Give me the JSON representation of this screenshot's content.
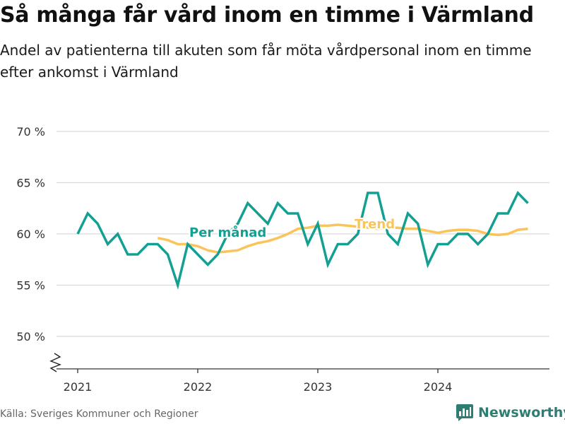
{
  "header": {
    "title": "Så många får vård inom en timme i Värmland",
    "subtitle": "Andel av patienterna till akuten som får möta vårdpersonal inom en timme efter ankomst i Värmland"
  },
  "footer": {
    "source": "Källa: Sveriges Kommuner och Regioner",
    "brand": "Newsworthy"
  },
  "colors": {
    "monthly": "#13a093",
    "trend": "#f9c55b",
    "grid": "#d9d9d9",
    "axis": "#333333",
    "brand": "#2e7d73"
  },
  "chart_data": {
    "type": "line",
    "title": "",
    "xlabel": "",
    "ylabel": "",
    "ylim": [
      50,
      70
    ],
    "y_ticks": [
      50,
      55,
      60,
      65,
      70
    ],
    "y_tick_labels": [
      "50 %",
      "55 %",
      "60 %",
      "65 %",
      "70 %"
    ],
    "x_ticks": [
      "2021-01",
      "2022-01",
      "2023-01",
      "2024-01"
    ],
    "x_tick_labels": [
      "2021",
      "2022",
      "2023",
      "2024"
    ],
    "y_axis_break": true,
    "grid": "horizontal",
    "series": [
      {
        "name": "Per månad",
        "x": [
          "2021-01",
          "2021-02",
          "2021-03",
          "2021-04",
          "2021-05",
          "2021-06",
          "2021-07",
          "2021-08",
          "2021-09",
          "2021-10",
          "2021-11",
          "2021-12",
          "2022-01",
          "2022-02",
          "2022-03",
          "2022-04",
          "2022-05",
          "2022-06",
          "2022-07",
          "2022-08",
          "2022-09",
          "2022-10",
          "2022-11",
          "2022-12",
          "2023-01",
          "2023-02",
          "2023-03",
          "2023-04",
          "2023-05",
          "2023-06",
          "2023-07",
          "2023-08",
          "2023-09",
          "2023-10",
          "2023-11",
          "2023-12",
          "2024-01",
          "2024-02",
          "2024-03",
          "2024-04",
          "2024-05",
          "2024-06",
          "2024-07",
          "2024-08",
          "2024-09",
          "2024-10"
        ],
        "values": [
          60,
          62,
          61,
          59,
          60,
          58,
          58,
          59,
          59,
          58,
          55,
          59,
          58,
          57,
          58,
          60,
          61,
          63,
          62,
          61,
          63,
          62,
          62,
          59,
          61,
          57,
          59,
          59,
          60,
          64,
          64,
          60,
          59,
          62,
          61,
          57,
          59,
          59,
          60,
          60,
          59,
          60,
          62,
          62,
          64,
          63
        ]
      },
      {
        "name": "Trend",
        "x": [
          "2021-09",
          "2021-10",
          "2021-11",
          "2021-12",
          "2022-01",
          "2022-02",
          "2022-03",
          "2022-04",
          "2022-05",
          "2022-06",
          "2022-07",
          "2022-08",
          "2022-09",
          "2022-10",
          "2022-11",
          "2022-12",
          "2023-01",
          "2023-02",
          "2023-03",
          "2023-04",
          "2023-05",
          "2023-06",
          "2023-07",
          "2023-08",
          "2023-09",
          "2023-10",
          "2023-11",
          "2023-12",
          "2024-01",
          "2024-02",
          "2024-03",
          "2024-04",
          "2024-05",
          "2024-06",
          "2024-07",
          "2024-08",
          "2024-09",
          "2024-10"
        ],
        "values": [
          59.6,
          59.4,
          59.0,
          59.0,
          58.8,
          58.4,
          58.2,
          58.3,
          58.4,
          58.8,
          59.1,
          59.3,
          59.6,
          60.0,
          60.5,
          60.6,
          60.8,
          60.8,
          60.9,
          60.8,
          60.7,
          60.6,
          60.5,
          60.6,
          60.6,
          60.5,
          60.5,
          60.3,
          60.1,
          60.3,
          60.4,
          60.4,
          60.3,
          60.0,
          59.9,
          60.0,
          60.4,
          60.5
        ]
      }
    ],
    "annotations": [
      {
        "text": "Per månad",
        "series": "Per månad"
      },
      {
        "text": "Trend",
        "series": "Trend"
      }
    ]
  }
}
